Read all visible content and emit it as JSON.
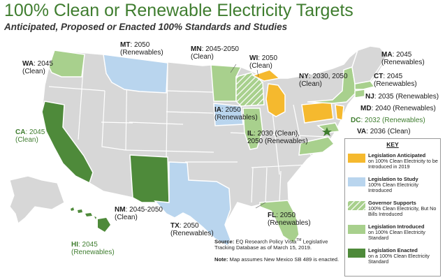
{
  "title": "100% Clean or Renewable Electricity Targets",
  "subtitle": "Anticipated, Proposed or Enacted 100% Standards and Studies",
  "colors": {
    "anticipated": "#f5b92e",
    "study": "#b9d5ee",
    "supports": "#a8d08d",
    "introduced": "#a8d08d",
    "enacted": "#4e8a3a",
    "other_state": "#d7d7d7",
    "title": "#3f7d2f"
  },
  "states": {
    "wa": {
      "abbr": "WA",
      "text": ": 2045",
      "detail": "(Clean)"
    },
    "mt": {
      "abbr": "MT",
      "text": ": 2050",
      "detail": "(Renewables)"
    },
    "mn": {
      "abbr": "MN",
      "text": ": 2045-2050",
      "detail": "(Clean)"
    },
    "wi": {
      "abbr": "WI",
      "text": ": 2050",
      "detail": "(Clean)"
    },
    "ny": {
      "abbr": "NY",
      "text": ": 2030, 2050",
      "detail": "(Clean)"
    },
    "ma": {
      "abbr": "MA",
      "text": ": 2045",
      "detail": "(Renewables)"
    },
    "ct": {
      "abbr": "CT",
      "text": ": 2045",
      "detail": "(Renewables)"
    },
    "nj": {
      "abbr": "NJ",
      "text": ": 2035 (Renewables)"
    },
    "md": {
      "abbr": "MD",
      "text": ": 2040 (Renewables)"
    },
    "dc": {
      "abbr": "DC",
      "text": ": 2032 (Renewables)"
    },
    "va": {
      "abbr": "VA",
      "text": ": 2036 (Clean)"
    },
    "ia": {
      "abbr": "IA",
      "text": ": 2050",
      "detail": "(Renewables)"
    },
    "il": {
      "abbr": "IL",
      "text": ": 2030 (Clean),",
      "detail": "2050 (Renewables)"
    },
    "ca": {
      "abbr": "CA",
      "text": ": 2045",
      "detail": "(Clean)"
    },
    "nm": {
      "abbr": "NM",
      "text": ": 2045-2050",
      "detail": "(Clean)"
    },
    "tx": {
      "abbr": "TX",
      "text": ": 2050",
      "detail": "(Renewables)"
    },
    "fl": {
      "abbr": "FL",
      "text": ": 2050",
      "detail": "(Renewables)"
    },
    "hi": {
      "abbr": "HI",
      "text": ": 2045",
      "detail": "(Renewables)"
    }
  },
  "key": {
    "title": "KEY",
    "items": [
      {
        "label": "Legislation Anticipated",
        "desc": "on 100% Clean Electricity to be Introduced in 2019"
      },
      {
        "label": "Legislation to Study",
        "desc": "100% Clean Electricity Introduced"
      },
      {
        "label": "Governor Supports",
        "desc": "100% Clean Electricity, But No Bills Introduced"
      },
      {
        "label": "Legislation Introduced",
        "desc": "on 100% Clean Electricity Standard"
      },
      {
        "label": "Legislation Enacted",
        "desc": "on a 100% Clean Electricity Standard"
      }
    ]
  },
  "source": {
    "label": "Source:",
    "text1": "EQ Research Policy Vista",
    "tm": "TM",
    "text2": "Legislative Tracking Database as of March 15, 2019.",
    "note_label": "Note:",
    "note_text": "Map assumes New Mexico SB 489 is enacted."
  }
}
